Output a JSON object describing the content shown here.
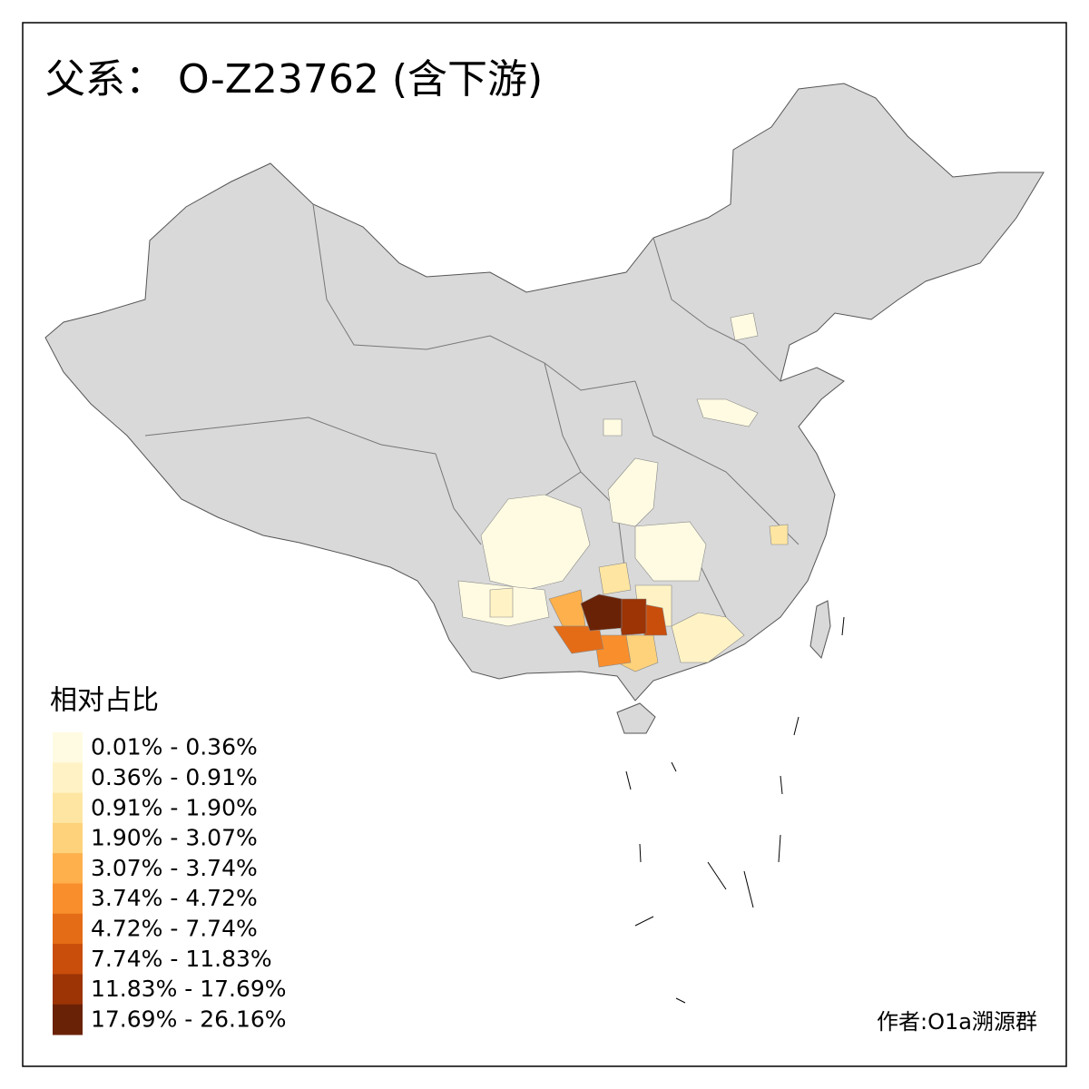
{
  "title": "父系： O-Z23762 (含下游)",
  "legend": {
    "title": "相对占比",
    "items": [
      {
        "label": "0.01% - 0.36%",
        "color": "#fffbe2"
      },
      {
        "label": "0.36% - 0.91%",
        "color": "#fff3c6"
      },
      {
        "label": "0.91% - 1.90%",
        "color": "#fee6a2"
      },
      {
        "label": "1.90% - 3.07%",
        "color": "#fed27b"
      },
      {
        "label": "3.07% - 3.74%",
        "color": "#fdb04b"
      },
      {
        "label": "3.74% - 4.72%",
        "color": "#f98e2c"
      },
      {
        "label": "4.72% - 7.74%",
        "color": "#e56c17"
      },
      {
        "label": "7.74% - 11.83%",
        "color": "#c94e0b"
      },
      {
        "label": "11.83% - 17.69%",
        "color": "#9c3406"
      },
      {
        "label": "17.69% - 26.16%",
        "color": "#6a2206"
      }
    ]
  },
  "credit": "作者:O1a溯源群"
}
